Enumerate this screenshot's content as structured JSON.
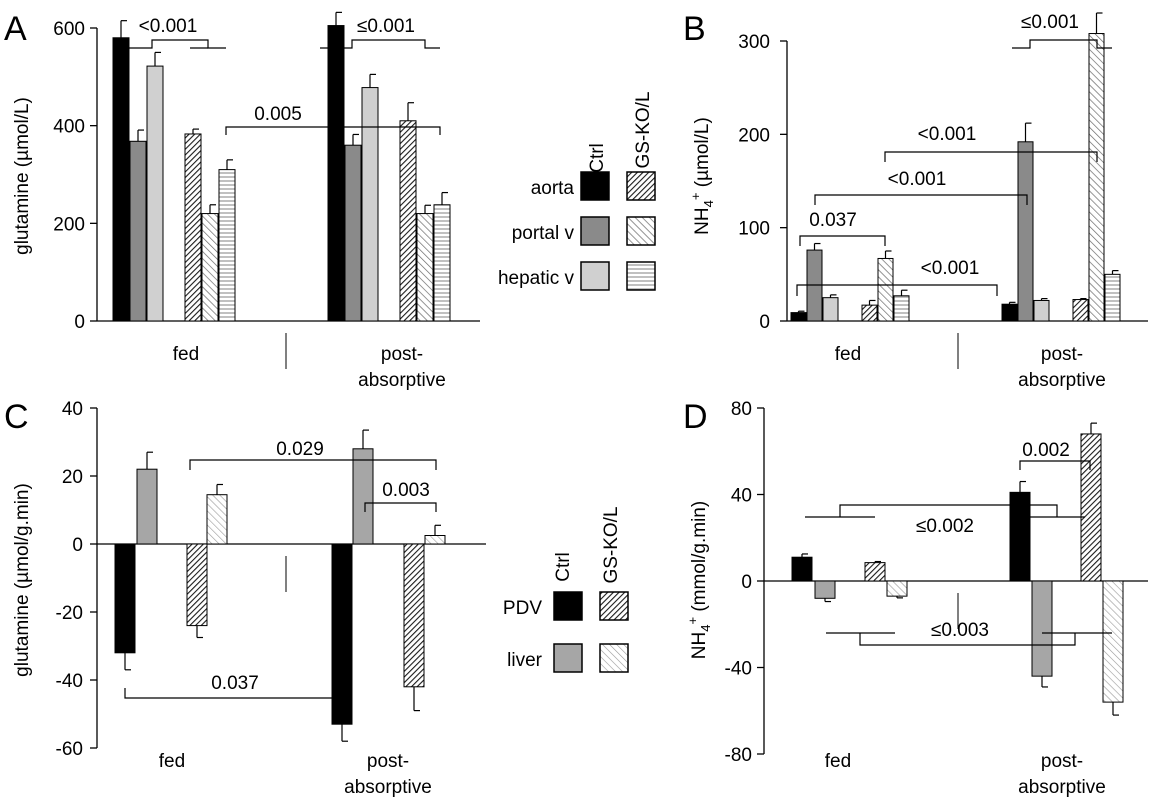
{
  "figure": {
    "legend_top": {
      "col_ctrl": "Ctrl",
      "col_gs": "GS-KO/L",
      "rows": [
        "aorta",
        "portal v",
        "hepatic v"
      ]
    },
    "legend_bottom": {
      "col_ctrl": "Ctrl",
      "col_gs": "GS-KO/L",
      "rows": [
        "PDV",
        "liver"
      ]
    }
  },
  "chart_data": [
    {
      "panel": "A",
      "type": "bar",
      "ylabel": "glutamine (µmol/L)",
      "ylim": [
        0,
        600
      ],
      "yticks": [
        0,
        200,
        400,
        600
      ],
      "groups": [
        "fed",
        "post-\nabsorptive"
      ],
      "series": [
        {
          "name": "aorta",
          "genotype": "Ctrl",
          "values": [
            580,
            605
          ],
          "errors": [
            35,
            27
          ]
        },
        {
          "name": "portal v",
          "genotype": "Ctrl",
          "values": [
            368,
            360
          ],
          "errors": [
            23,
            22
          ]
        },
        {
          "name": "hepatic v",
          "genotype": "Ctrl",
          "values": [
            522,
            478
          ],
          "errors": [
            28,
            27
          ]
        },
        {
          "name": "aorta",
          "genotype": "GS-KO/L",
          "values": [
            383,
            410
          ],
          "errors": [
            10,
            37
          ]
        },
        {
          "name": "portal v",
          "genotype": "GS-KO/L",
          "values": [
            220,
            220
          ],
          "errors": [
            18,
            17
          ]
        },
        {
          "name": "hepatic v",
          "genotype": "GS-KO/L",
          "values": [
            310,
            238
          ],
          "errors": [
            20,
            25
          ]
        }
      ],
      "annotations": [
        "<0.001",
        "≤0.001",
        "0.005"
      ]
    },
    {
      "panel": "B",
      "type": "bar",
      "ylabel": "NH4+ (µmol/L)",
      "ylim": [
        0,
        300
      ],
      "yticks": [
        0,
        100,
        200,
        300
      ],
      "groups": [
        "fed",
        "post-\nabsorptive"
      ],
      "series": [
        {
          "name": "aorta",
          "genotype": "Ctrl",
          "values": [
            9,
            18
          ],
          "errors": [
            1.5,
            2
          ]
        },
        {
          "name": "portal v",
          "genotype": "Ctrl",
          "values": [
            76,
            192
          ],
          "errors": [
            7,
            20
          ]
        },
        {
          "name": "hepatic v",
          "genotype": "Ctrl",
          "values": [
            25,
            22
          ],
          "errors": [
            3,
            2
          ]
        },
        {
          "name": "aorta",
          "genotype": "GS-KO/L",
          "values": [
            17,
            23
          ],
          "errors": [
            5,
            1
          ]
        },
        {
          "name": "portal v",
          "genotype": "GS-KO/L",
          "values": [
            67,
            308
          ],
          "errors": [
            8,
            22
          ]
        },
        {
          "name": "hepatic v",
          "genotype": "GS-KO/L",
          "values": [
            27,
            50
          ],
          "errors": [
            6,
            4
          ]
        }
      ],
      "annotations": [
        "≤0.001",
        "<0.001",
        "<0.001",
        "0.037",
        "<0.001"
      ]
    },
    {
      "panel": "C",
      "type": "bar",
      "ylabel": "glutamine (µmol/g.min)",
      "ylim": [
        -60,
        40
      ],
      "yticks": [
        -60,
        -40,
        -20,
        0,
        20,
        40
      ],
      "groups": [
        "fed",
        "post-\nabsorptive"
      ],
      "series": [
        {
          "name": "PDV",
          "genotype": "Ctrl",
          "values": [
            -32,
            -53
          ],
          "errors": [
            5,
            5
          ]
        },
        {
          "name": "liver",
          "genotype": "Ctrl",
          "values": [
            22,
            28
          ],
          "errors": [
            5,
            5.5
          ]
        },
        {
          "name": "PDV",
          "genotype": "GS-KO/L",
          "values": [
            -24,
            -42
          ],
          "errors": [
            3.5,
            7
          ]
        },
        {
          "name": "liver",
          "genotype": "GS-KO/L",
          "values": [
            14.5,
            2.5
          ],
          "errors": [
            3,
            3
          ]
        }
      ],
      "annotations": [
        "0.029",
        "0.003",
        "0.037"
      ]
    },
    {
      "panel": "D",
      "type": "bar",
      "ylabel": "NH4+ (mmol/g.min)",
      "ylim": [
        -80,
        80
      ],
      "yticks": [
        -80,
        -40,
        0,
        40,
        80
      ],
      "groups": [
        "fed",
        "post-\nabsorptive"
      ],
      "series": [
        {
          "name": "PDV",
          "genotype": "Ctrl",
          "values": [
            11,
            41
          ],
          "errors": [
            1.5,
            5
          ]
        },
        {
          "name": "liver",
          "genotype": "Ctrl",
          "values": [
            -8,
            -44
          ],
          "errors": [
            1.5,
            5
          ]
        },
        {
          "name": "PDV",
          "genotype": "GS-KO/L",
          "values": [
            8.5,
            68
          ],
          "errors": [
            0.5,
            5
          ]
        },
        {
          "name": "liver",
          "genotype": "GS-KO/L",
          "values": [
            -7,
            -56
          ],
          "errors": [
            0.8,
            6
          ]
        }
      ],
      "annotations": [
        "0.002",
        "≤0.002",
        "≤0.003"
      ]
    }
  ]
}
